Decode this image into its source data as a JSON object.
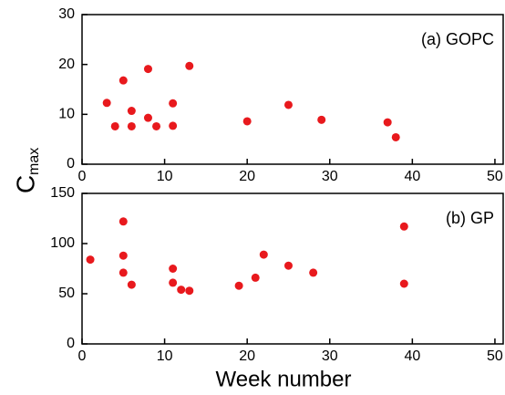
{
  "chart_data": [
    {
      "type": "scatter",
      "annotation": "(a) GOPC",
      "ylabel": "C",
      "ylabel_subscript": "max",
      "x": [
        3,
        4,
        5,
        6,
        6,
        8,
        8,
        9,
        11,
        11,
        13,
        20,
        25,
        29,
        37,
        38
      ],
      "values": [
        12.3,
        7.6,
        16.8,
        10.7,
        7.6,
        19.1,
        9.3,
        7.6,
        12.2,
        7.7,
        19.7,
        8.6,
        11.9,
        8.9,
        8.4,
        5.4
      ],
      "color": "#e8191d",
      "xlim": [
        0,
        51
      ],
      "xticks": [
        0,
        10,
        20,
        30,
        40,
        50
      ],
      "ylim": [
        0,
        30
      ],
      "yticks": [
        0,
        10,
        20,
        30
      ]
    },
    {
      "type": "scatter",
      "annotation": "(b) GP",
      "xlabel": "Week number",
      "x": [
        1,
        5,
        5,
        5,
        6,
        11,
        11,
        12,
        13,
        19,
        21,
        22,
        25,
        28,
        39,
        39
      ],
      "values": [
        84,
        122,
        88,
        71,
        59,
        75,
        61,
        54,
        53,
        58,
        66,
        89,
        78,
        71,
        117,
        60
      ],
      "color": "#e8191d",
      "xlim": [
        0,
        51
      ],
      "xticks": [
        0,
        10,
        20,
        30,
        40,
        50
      ],
      "ylim": [
        0,
        150
      ],
      "yticks": [
        0,
        50,
        100,
        150
      ]
    }
  ]
}
